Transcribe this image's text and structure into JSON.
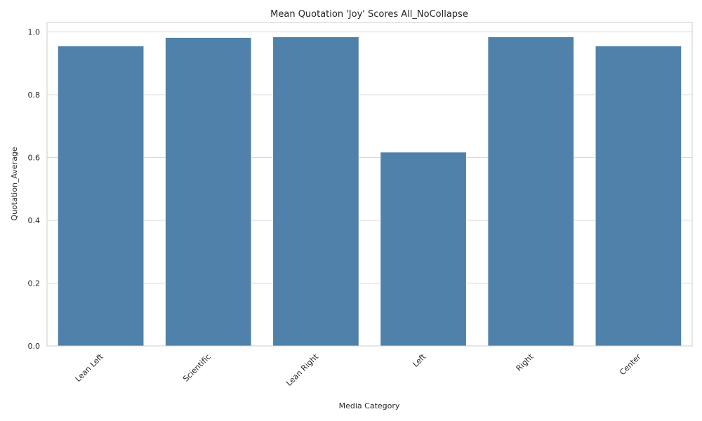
{
  "chart_data": {
    "type": "bar",
    "title": "Mean Quotation 'Joy' Scores All_NoCollapse",
    "xlabel": "Media Category",
    "ylabel": "Quotation_Average",
    "categories": [
      "Lean Left",
      "Scientific",
      "Lean Right",
      "Left",
      "Right",
      "Center"
    ],
    "values": [
      0.955,
      0.982,
      0.984,
      0.617,
      0.984,
      0.955
    ],
    "ylim": [
      0,
      1.03
    ],
    "yticks": [
      "0.0",
      "0.2",
      "0.4",
      "0.6",
      "0.8",
      "1.0"
    ],
    "bar_color": "#4f81aa",
    "grid": true
  }
}
